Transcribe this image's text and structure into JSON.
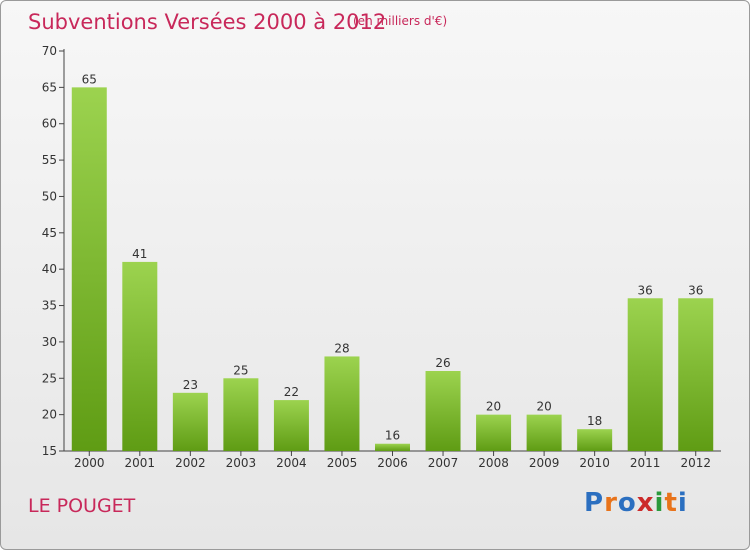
{
  "header": {
    "title": "Subventions Versées 2000 à 2012",
    "units": "(en milliers d'€)"
  },
  "footer": {
    "place": "LE POUGET",
    "logo": "Proxiti",
    "logo_colors": [
      "#2b6fc0",
      "#e8731a",
      "#2b6fc0",
      "#cc2a2a",
      "#2b9a3c",
      "#e8731a",
      "#2b6fc0"
    ]
  },
  "colors": {
    "bar_light": "#9cd34f",
    "bar_dark": "#5f9c14",
    "text": "#333333",
    "accent": "#c8285a"
  },
  "chart_data": {
    "type": "bar",
    "categories": [
      "2000",
      "2001",
      "2002",
      "2003",
      "2004",
      "2005",
      "2006",
      "2007",
      "2008",
      "2009",
      "2010",
      "2011",
      "2012"
    ],
    "values": [
      65,
      41,
      23,
      25,
      22,
      28,
      16,
      26,
      20,
      20,
      18,
      36,
      36
    ],
    "ylim": [
      15,
      70
    ],
    "yticks": [
      15,
      20,
      25,
      30,
      35,
      40,
      45,
      50,
      55,
      60,
      65,
      70
    ],
    "grid": false,
    "data_labels": true
  }
}
